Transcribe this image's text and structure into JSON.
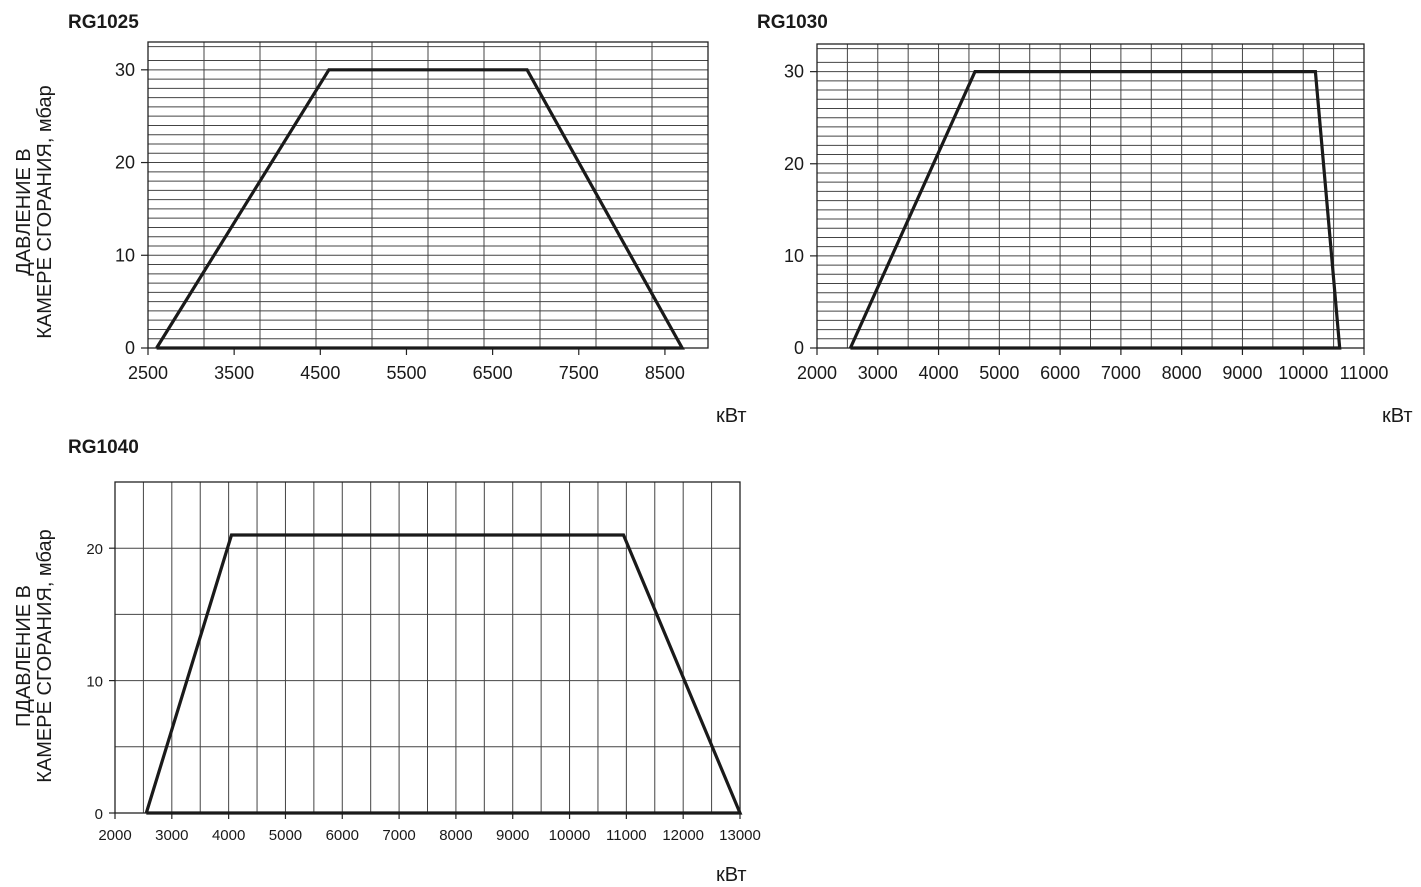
{
  "chart_data": [
    {
      "id": "rg1025",
      "type": "area",
      "title": "RG1025",
      "ylabel_lines": [
        "ДАВЛЕНИЕ В",
        "КАМЕРЕ СГОРАНИЯ, мбар"
      ],
      "xunit": "кВт",
      "xlim": [
        2500,
        9000
      ],
      "ylim": [
        0,
        30
      ],
      "x_ticks": [
        2500,
        3500,
        4500,
        5500,
        6500,
        7500,
        8500
      ],
      "y_ticks": [
        0,
        10,
        20,
        30
      ],
      "grid": true,
      "series": [
        {
          "x": [
            2600,
            4600,
            6900,
            8700,
            2600
          ],
          "y": [
            0,
            30,
            30,
            0,
            0
          ]
        }
      ]
    },
    {
      "id": "rg1030",
      "type": "area",
      "title": "RG1030",
      "xunit": "кВт",
      "xlim": [
        2000,
        11000
      ],
      "ylim": [
        0,
        30
      ],
      "x_ticks": [
        2000,
        3000,
        4000,
        5000,
        6000,
        7000,
        8000,
        9000,
        10000,
        11000
      ],
      "y_ticks": [
        0,
        10,
        20,
        30
      ],
      "grid": true,
      "series": [
        {
          "x": [
            2550,
            4600,
            10200,
            10600,
            2550
          ],
          "y": [
            0,
            30,
            30,
            0,
            0
          ]
        }
      ]
    },
    {
      "id": "rg1040",
      "type": "area",
      "title": "RG1040",
      "ylabel_lines": [
        "ПДАВЛЕНИЕ В",
        "КАМЕРЕ СГОРАНИЯ, мбар"
      ],
      "xunit": "кВт",
      "xlim": [
        2000,
        13000
      ],
      "ylim": [
        0,
        25
      ],
      "x_ticks": [
        2000,
        3000,
        4000,
        5000,
        6000,
        7000,
        8000,
        9000,
        10000,
        11000,
        12000,
        13000
      ],
      "x_tick_labels": [
        "2000",
        "3000",
        "4000",
        "5000",
        "6000",
        "7000",
        "8000",
        "9000",
        "10000",
        "11000",
        "12000",
        "13000"
      ],
      "y_ticks": [
        0,
        10,
        20
      ],
      "grid": true,
      "series": [
        {
          "x": [
            2550,
            4050,
            10950,
            13000,
            2550
          ],
          "y": [
            0,
            21,
            21,
            0,
            0
          ]
        }
      ]
    }
  ]
}
